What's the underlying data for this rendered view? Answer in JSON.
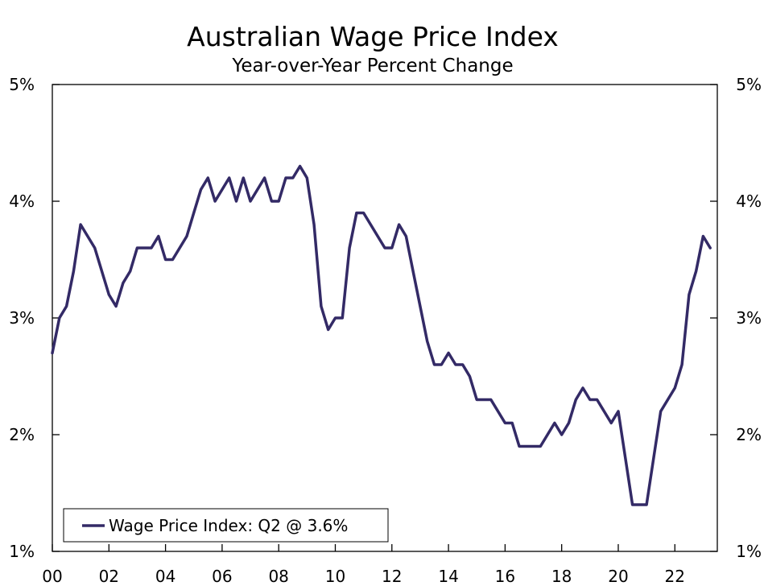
{
  "chart_data": {
    "type": "line",
    "title": "Australian Wage Price Index",
    "subtitle": "Year-over-Year Percent Change",
    "xlabel": "",
    "ylabel": "",
    "xlim": [
      2000,
      2023.5
    ],
    "ylim": [
      1,
      5
    ],
    "x_ticks": [
      2000,
      2002,
      2004,
      2006,
      2008,
      2010,
      2012,
      2014,
      2016,
      2018,
      2020,
      2022
    ],
    "x_tick_labels": [
      "00",
      "02",
      "04",
      "06",
      "08",
      "10",
      "12",
      "14",
      "16",
      "18",
      "20",
      "22"
    ],
    "y_ticks": [
      1,
      2,
      3,
      4,
      5
    ],
    "y_tick_labels_left": [
      "1%",
      "2%",
      "3%",
      "4%",
      "5%"
    ],
    "y_tick_labels_right": [
      "1%",
      "2%",
      "3%",
      "4%",
      "5%"
    ],
    "grid": false,
    "legend_position": "bottom-left",
    "line_color": "#332a66",
    "series": [
      {
        "name": "Wage Price Index: Q2 @ 3.6%",
        "start": "2000-Q1",
        "frequency": "quarterly",
        "values": [
          2.7,
          3.0,
          3.1,
          3.4,
          3.8,
          3.7,
          3.6,
          3.4,
          3.2,
          3.1,
          3.3,
          3.4,
          3.6,
          3.6,
          3.6,
          3.7,
          3.5,
          3.5,
          3.6,
          3.7,
          3.9,
          4.1,
          4.2,
          4.0,
          4.1,
          4.2,
          4.0,
          4.2,
          4.0,
          4.1,
          4.2,
          4.0,
          4.0,
          4.2,
          4.2,
          4.3,
          4.2,
          3.8,
          3.1,
          2.9,
          3.0,
          3.0,
          3.6,
          3.9,
          3.9,
          3.8,
          3.7,
          3.6,
          3.6,
          3.8,
          3.7,
          3.4,
          3.1,
          2.8,
          2.6,
          2.6,
          2.7,
          2.6,
          2.6,
          2.5,
          2.3,
          2.3,
          2.3,
          2.2,
          2.1,
          2.1,
          1.9,
          1.9,
          1.9,
          1.9,
          2.0,
          2.1,
          2.0,
          2.1,
          2.3,
          2.4,
          2.3,
          2.3,
          2.2,
          2.1,
          2.2,
          1.8,
          1.4,
          1.4,
          1.4,
          1.8,
          2.2,
          2.3,
          2.4,
          2.6,
          3.2,
          3.4,
          3.7,
          3.6
        ]
      }
    ]
  }
}
